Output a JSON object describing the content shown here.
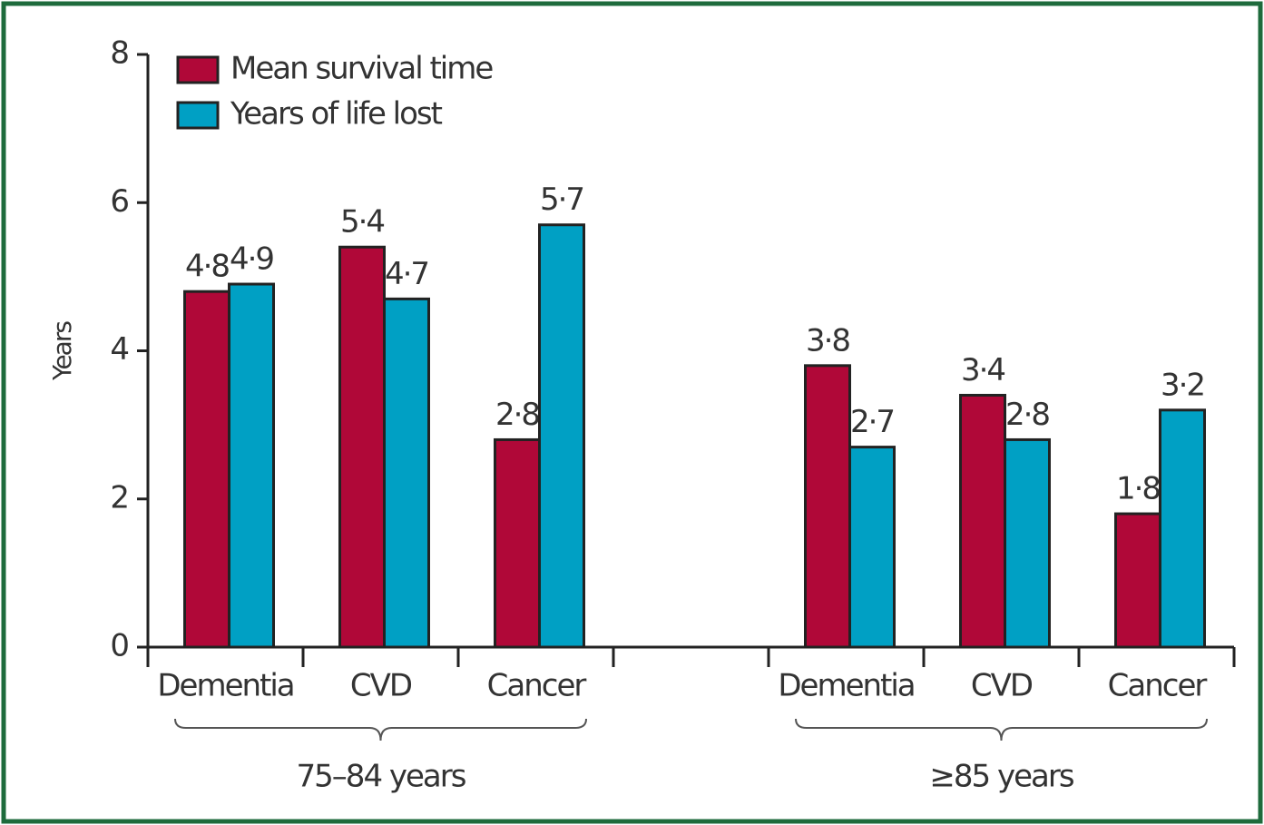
{
  "chart_data": {
    "type": "bar",
    "y_label": "Years",
    "categories": [
      "Dementia",
      "CVD",
      "Cancer",
      null,
      "Dementia",
      "CVD",
      "Cancer"
    ],
    "series": [
      {
        "name": "Mean survival time",
        "color": "#b00838",
        "values": [
          4.8,
          5.4,
          2.8,
          null,
          3.8,
          3.4,
          1.8
        ],
        "value_labels": [
          "4·8",
          "5·4",
          "2·8",
          null,
          "3·8",
          "3·4",
          "1·8"
        ]
      },
      {
        "name": "Years of life lost",
        "color": "#00a0c4",
        "values": [
          4.9,
          4.7,
          5.7,
          null,
          2.7,
          2.8,
          3.2
        ],
        "value_labels": [
          "4·9",
          "4·7",
          "5·7",
          null,
          "2·7",
          "2·8",
          "3·2"
        ]
      }
    ],
    "annotations": [
      "75–84 years",
      "≥85 years"
    ],
    "ylim": [
      0,
      8
    ],
    "yticks": [
      0,
      2,
      4,
      6,
      8
    ],
    "legend": "upper left"
  }
}
